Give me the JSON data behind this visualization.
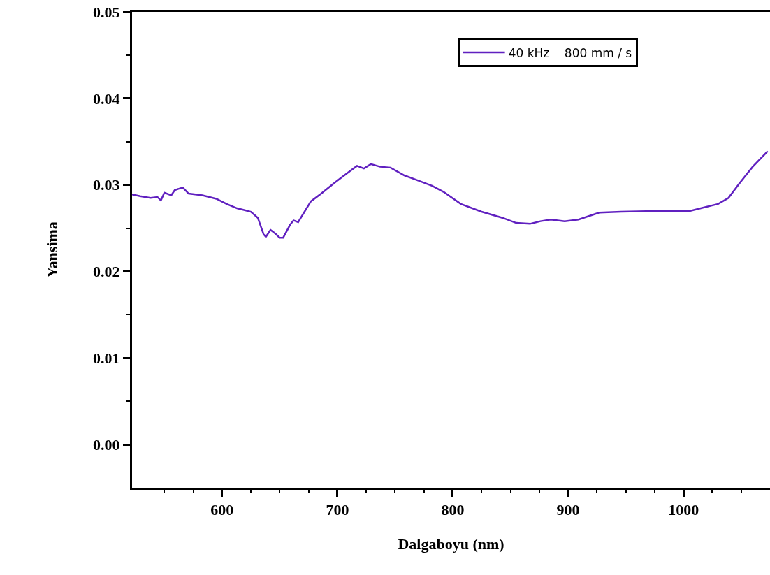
{
  "chart_data": {
    "type": "line",
    "xlabel": "Dalgaboyu (nm)",
    "ylabel": "Yansima",
    "x": [
      522,
      529,
      538,
      544,
      547,
      550,
      556,
      559,
      566,
      571,
      583,
      595,
      604,
      613,
      619,
      625,
      631,
      636,
      638,
      642,
      646,
      650,
      653,
      659,
      662,
      666,
      677,
      686,
      698,
      710,
      717,
      723,
      729,
      737,
      746,
      758,
      770,
      782,
      792,
      807,
      825,
      843,
      855,
      867,
      876,
      885,
      897,
      909,
      927,
      946,
      982,
      1006,
      1015,
      1030,
      1039,
      1048,
      1060,
      1073
    ],
    "series": [
      {
        "name": "40 kHz    800 mm / s",
        "color": "#6020c0",
        "values": [
          0.0289,
          0.0287,
          0.0285,
          0.0286,
          0.0282,
          0.0291,
          0.0288,
          0.0294,
          0.0297,
          0.029,
          0.0288,
          0.0284,
          0.0278,
          0.0273,
          0.0271,
          0.0269,
          0.0262,
          0.0243,
          0.024,
          0.0248,
          0.0244,
          0.0239,
          0.0239,
          0.0254,
          0.0259,
          0.0257,
          0.0281,
          0.029,
          0.0303,
          0.0315,
          0.0322,
          0.0319,
          0.0324,
          0.0321,
          0.032,
          0.0311,
          0.0305,
          0.0299,
          0.0292,
          0.0278,
          0.0269,
          0.0262,
          0.0256,
          0.0255,
          0.0258,
          0.026,
          0.0258,
          0.026,
          0.0268,
          0.0269,
          0.027,
          0.027,
          0.0273,
          0.0278,
          0.0285,
          0.0301,
          0.0321,
          0.0339
        ]
      }
    ],
    "xlim": [
      522,
      1075
    ],
    "ylim": [
      -0.005,
      0.05
    ],
    "xticks": [
      {
        "value": 550,
        "label": null
      },
      {
        "value": 575,
        "label": null
      },
      600,
      {
        "value": 625,
        "label": null
      },
      {
        "value": 650,
        "label": null
      },
      {
        "value": 675,
        "label": null
      },
      700,
      {
        "value": 725,
        "label": null
      },
      {
        "value": 750,
        "label": null
      },
      {
        "value": 775,
        "label": null
      },
      800,
      {
        "value": 825,
        "label": null
      },
      {
        "value": 850,
        "label": null
      },
      {
        "value": 875,
        "label": null
      },
      900,
      {
        "value": 925,
        "label": null
      },
      {
        "value": 950,
        "label": null
      },
      {
        "value": 975,
        "label": null
      },
      1000,
      {
        "value": 1025,
        "label": null
      },
      {
        "value": 1050,
        "label": null
      }
    ],
    "yticks": [
      {
        "value": 0,
        "label": "0.00"
      },
      {
        "value": 0.005,
        "label": null
      },
      {
        "value": 0.01,
        "label": "0.01"
      },
      {
        "value": 0.015,
        "label": null
      },
      {
        "value": 0.02,
        "label": "0.02"
      },
      {
        "value": 0.025,
        "label": null
      },
      {
        "value": 0.03,
        "label": "0.03"
      },
      {
        "value": 0.035,
        "label": null
      },
      {
        "value": 0.04,
        "label": "0.04"
      },
      {
        "value": 0.045,
        "label": null
      },
      {
        "value": 0.05,
        "label": "0.05"
      }
    ],
    "legend": "top right",
    "marker": "none",
    "line_style": "solid"
  }
}
